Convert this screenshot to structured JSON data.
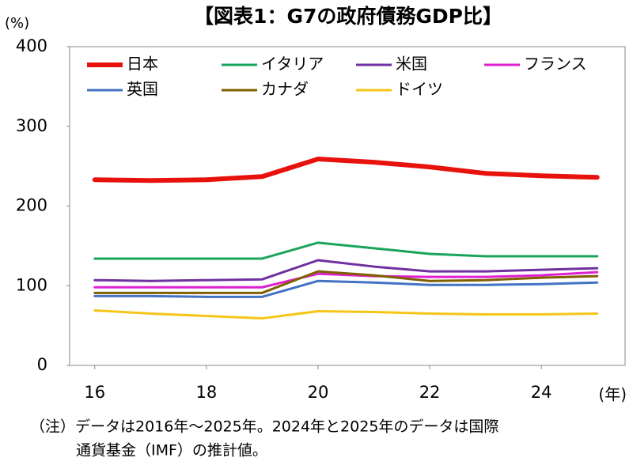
{
  "chart_data": {
    "type": "line",
    "title": "【図表1：G7の政府債務GDP比】",
    "y_unit_label": "(%)",
    "x_unit_label": "(年)",
    "note": [
      "（注）データは2016年～2025年。2024年と2025年のデータは国際",
      "通貨基金（IMF）の推計値。"
    ],
    "x": [
      16,
      17,
      18,
      19,
      20,
      21,
      22,
      23,
      24,
      25
    ],
    "xlim": [
      15.55,
      25.5
    ],
    "xticks": [
      16,
      18,
      20,
      22,
      24
    ],
    "ylim": [
      0,
      400
    ],
    "yticks": [
      0,
      100,
      200,
      300,
      400
    ],
    "grid": false,
    "series": [
      {
        "name": "日本",
        "color": "#e8120c",
        "width": 6,
        "values": [
          233,
          232,
          233,
          237,
          259,
          255,
          249,
          241,
          238,
          236
        ]
      },
      {
        "name": "イタリア",
        "color": "#1aa55a",
        "width": 3,
        "values": [
          134,
          134,
          134,
          134,
          154,
          147,
          140,
          137,
          137,
          137
        ]
      },
      {
        "name": "米国",
        "color": "#7030a0",
        "width": 3,
        "values": [
          107,
          106,
          107,
          108,
          132,
          124,
          118,
          118,
          120,
          122
        ]
      },
      {
        "name": "フランス",
        "color": "#e020d0",
        "width": 3,
        "values": [
          98,
          98,
          98,
          98,
          115,
          112,
          111,
          111,
          113,
          117
        ]
      },
      {
        "name": "英国",
        "color": "#4472c4",
        "width": 3,
        "values": [
          87,
          87,
          86,
          86,
          106,
          104,
          101,
          101,
          102,
          104
        ]
      },
      {
        "name": "カナダ",
        "color": "#7f6000",
        "width": 3,
        "values": [
          91,
          91,
          91,
          91,
          118,
          113,
          106,
          107,
          110,
          112
        ]
      },
      {
        "name": "ドイツ",
        "color": "#f5c518",
        "width": 3,
        "values": [
          69,
          65,
          62,
          59,
          68,
          67,
          65,
          64,
          64,
          65
        ]
      }
    ]
  }
}
